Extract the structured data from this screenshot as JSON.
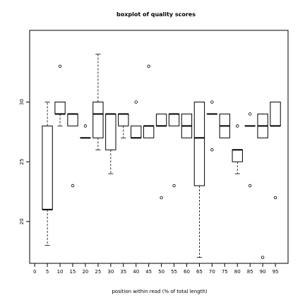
{
  "chart_data": {
    "type": "boxplot",
    "title": "boxplot of quality scores",
    "xlabel": "position within read (% of total length)",
    "ylabel": "",
    "xlim": [
      -2,
      100
    ],
    "ylim": [
      16.5,
      36
    ],
    "x_ticks": [
      0,
      5,
      10,
      15,
      20,
      25,
      30,
      35,
      40,
      45,
      50,
      55,
      60,
      65,
      70,
      75,
      80,
      85,
      90,
      95
    ],
    "y_ticks": [
      20,
      25,
      30
    ],
    "box_width": 4,
    "grid": false,
    "boxes": [
      {
        "x": 5,
        "whislo": 18,
        "q1": 21,
        "med": 21,
        "q3": 28,
        "whishi": 30,
        "outliers": []
      },
      {
        "x": 10,
        "whislo": 28,
        "q1": 29,
        "med": 29,
        "q3": 30,
        "whishi": 30,
        "outliers": [
          33
        ]
      },
      {
        "x": 15,
        "whislo": 28,
        "q1": 28,
        "med": 29,
        "q3": 29,
        "whishi": 29,
        "outliers": [
          23
        ]
      },
      {
        "x": 20,
        "whislo": 27,
        "q1": 27,
        "med": 27,
        "q3": 27,
        "whishi": 27,
        "outliers": [
          28
        ]
      },
      {
        "x": 25,
        "whislo": 26,
        "q1": 27,
        "med": 29,
        "q3": 30,
        "whishi": 34,
        "outliers": []
      },
      {
        "x": 30,
        "whislo": 24,
        "q1": 26,
        "med": 29,
        "q3": 29,
        "whishi": 29,
        "outliers": []
      },
      {
        "x": 35,
        "whislo": 27,
        "q1": 28,
        "med": 29,
        "q3": 29,
        "whishi": 29,
        "outliers": []
      },
      {
        "x": 40,
        "whislo": 27,
        "q1": 27,
        "med": 27,
        "q3": 28,
        "whishi": 28,
        "outliers": [
          30
        ]
      },
      {
        "x": 45,
        "whislo": 27,
        "q1": 27,
        "med": 28,
        "q3": 28,
        "whishi": 28,
        "outliers": [
          33
        ]
      },
      {
        "x": 50,
        "whislo": 28,
        "q1": 28,
        "med": 28,
        "q3": 29,
        "whishi": 29,
        "outliers": [
          22
        ]
      },
      {
        "x": 55,
        "whislo": 28,
        "q1": 28,
        "med": 29,
        "q3": 29,
        "whishi": 29,
        "outliers": [
          23
        ]
      },
      {
        "x": 60,
        "whislo": 27,
        "q1": 27,
        "med": 28,
        "q3": 29,
        "whishi": 29,
        "outliers": []
      },
      {
        "x": 65,
        "whislo": 17,
        "q1": 23,
        "med": 27,
        "q3": 30,
        "whishi": 30,
        "outliers": []
      },
      {
        "x": 70,
        "whislo": 29,
        "q1": 29,
        "med": 29,
        "q3": 29,
        "whishi": 29,
        "outliers": [
          30,
          26
        ]
      },
      {
        "x": 75,
        "whislo": 27,
        "q1": 27,
        "med": 28,
        "q3": 29,
        "whishi": 29,
        "outliers": []
      },
      {
        "x": 80,
        "whislo": 24,
        "q1": 25,
        "med": 26,
        "q3": 26,
        "whishi": 26,
        "outliers": [
          28
        ]
      },
      {
        "x": 85,
        "whislo": 28,
        "q1": 28,
        "med": 28,
        "q3": 28,
        "whishi": 28,
        "outliers": [
          29,
          23
        ]
      },
      {
        "x": 90,
        "whislo": 27,
        "q1": 27,
        "med": 28,
        "q3": 29,
        "whishi": 29,
        "outliers": [
          17
        ]
      },
      {
        "x": 95,
        "whislo": 28,
        "q1": 28,
        "med": 28,
        "q3": 30,
        "whishi": 30,
        "outliers": [
          22
        ]
      }
    ]
  }
}
